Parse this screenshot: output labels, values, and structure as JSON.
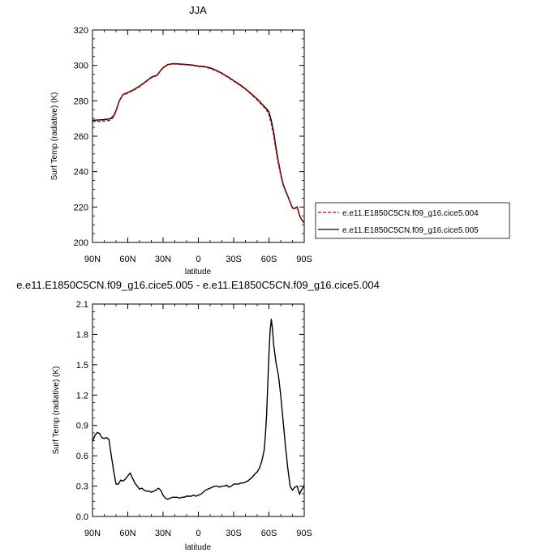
{
  "chart_data": [
    {
      "type": "line",
      "title": "JJA",
      "xlabel": "latitude",
      "ylabel": "Surf Temp (radiative) (K)",
      "ylim": [
        200,
        320
      ],
      "yticks": [
        "200",
        "220",
        "240",
        "260",
        "280",
        "300",
        "320"
      ],
      "xlim": [
        90,
        -90
      ],
      "xticks": [
        "90N",
        "60N",
        "30N",
        "0",
        "30S",
        "60S",
        "90S"
      ],
      "legend_position": "right",
      "series": [
        {
          "name": "e.e11.E1850C5CN.f09_g16.cice5.004",
          "color": "#cc0000",
          "dash": true,
          "x": [
            90,
            85,
            80,
            75,
            72,
            70,
            67,
            64,
            60,
            55,
            50,
            45,
            40,
            35,
            32,
            30,
            26,
            22,
            20,
            15,
            10,
            5,
            0,
            -5,
            -10,
            -15,
            -20,
            -25,
            -30,
            -35,
            -40,
            -45,
            -50,
            -55,
            -58,
            -60,
            -62,
            -64,
            -66,
            -68,
            -70,
            -72,
            -74,
            -76,
            -78,
            -80,
            -82,
            -84,
            -86,
            -88,
            -90
          ],
          "y": [
            268.3,
            268.4,
            268.6,
            269,
            271,
            274,
            280,
            283.3,
            284.3,
            286,
            288,
            290.5,
            293,
            294.3,
            297,
            298.5,
            300.3,
            300.7,
            300.8,
            300.5,
            300.3,
            300,
            299.4,
            299.1,
            298.3,
            297,
            295.3,
            293.3,
            291.1,
            288.9,
            286.5,
            283.6,
            280.5,
            277,
            274.7,
            272.2,
            267,
            260.5,
            252,
            244.5,
            238,
            232.5,
            229,
            226,
            222.5,
            219.3,
            219,
            219.7,
            215,
            212.5,
            211
          ]
        },
        {
          "name": "e.e11.E1850C5CN.f09_g16.cice5.005",
          "color": "#000000",
          "dash": false,
          "x": [
            90,
            85,
            80,
            75,
            72,
            70,
            67,
            64,
            60,
            55,
            50,
            45,
            40,
            35,
            32,
            30,
            26,
            22,
            20,
            15,
            10,
            5,
            0,
            -5,
            -10,
            -15,
            -20,
            -25,
            -30,
            -35,
            -40,
            -45,
            -50,
            -55,
            -58,
            -60,
            -62,
            -64,
            -66,
            -68,
            -70,
            -72,
            -74,
            -76,
            -78,
            -80,
            -82,
            -84,
            -86,
            -88,
            -90
          ],
          "y": [
            269.0,
            269.2,
            269.4,
            269.8,
            271.6,
            274.4,
            280.3,
            283.6,
            284.7,
            286.3,
            288.3,
            290.8,
            293.3,
            294.6,
            297.3,
            298.7,
            300.5,
            300.9,
            301,
            300.7,
            300.5,
            300.2,
            299.6,
            299.4,
            298.6,
            297.3,
            295.6,
            293.6,
            291.4,
            289.2,
            286.8,
            284,
            281,
            277.5,
            275.5,
            273.8,
            268.9,
            262.5,
            253.6,
            245.8,
            239,
            233,
            229.5,
            226.2,
            222.8,
            219.5,
            219.2,
            220.1,
            215.3,
            212.7,
            211.2
          ]
        }
      ]
    },
    {
      "type": "line",
      "title": "e.e11.E1850C5CN.f09_g16.cice5.005 - e.e11.E1850C5CN.f09_g16.cice5.004",
      "xlabel": "latitude",
      "ylabel": "Surf Temp (radiative) (K)",
      "ylim": [
        0.0,
        2.1
      ],
      "yticks": [
        "0.0",
        "0.3",
        "0.6",
        "0.9",
        "1.2",
        "1.5",
        "1.8",
        "2.1"
      ],
      "xlim": [
        90,
        -90
      ],
      "xticks": [
        "90N",
        "60N",
        "30N",
        "0",
        "30S",
        "60S",
        "90S"
      ],
      "series": [
        {
          "color": "#000000",
          "x": [
            90,
            88,
            86,
            84,
            82,
            80,
            78,
            76,
            74,
            72,
            70,
            68,
            66,
            64,
            62,
            60,
            58,
            56,
            54,
            52,
            50,
            48,
            46,
            44,
            42,
            40,
            38,
            36,
            34,
            32,
            30,
            28,
            26,
            24,
            22,
            20,
            18,
            16,
            14,
            12,
            10,
            8,
            6,
            4,
            2,
            0,
            -2,
            -4,
            -6,
            -8,
            -10,
            -12,
            -14,
            -16,
            -18,
            -20,
            -22,
            -24,
            -26,
            -28,
            -30,
            -32,
            -34,
            -36,
            -38,
            -40,
            -42,
            -44,
            -46,
            -48,
            -50,
            -52,
            -54,
            -56,
            -57,
            -58,
            -59,
            -60,
            -61,
            -62,
            -63,
            -64,
            -66,
            -68,
            -70,
            -72,
            -74,
            -76,
            -78,
            -80,
            -82,
            -84,
            -86,
            -88,
            -90
          ],
          "y": [
            0.74,
            0.8,
            0.83,
            0.82,
            0.78,
            0.77,
            0.78,
            0.76,
            0.6,
            0.45,
            0.32,
            0.32,
            0.36,
            0.35,
            0.37,
            0.4,
            0.43,
            0.38,
            0.33,
            0.3,
            0.27,
            0.28,
            0.26,
            0.25,
            0.25,
            0.24,
            0.25,
            0.26,
            0.28,
            0.26,
            0.21,
            0.18,
            0.17,
            0.18,
            0.19,
            0.19,
            0.19,
            0.18,
            0.19,
            0.19,
            0.2,
            0.2,
            0.2,
            0.21,
            0.2,
            0.21,
            0.22,
            0.24,
            0.26,
            0.27,
            0.28,
            0.29,
            0.3,
            0.3,
            0.29,
            0.3,
            0.3,
            0.31,
            0.29,
            0.3,
            0.32,
            0.32,
            0.32,
            0.33,
            0.33,
            0.34,
            0.35,
            0.37,
            0.39,
            0.42,
            0.44,
            0.48,
            0.55,
            0.66,
            0.8,
            1.0,
            1.3,
            1.6,
            1.84,
            1.95,
            1.85,
            1.7,
            1.52,
            1.4,
            1.2,
            0.95,
            0.7,
            0.48,
            0.3,
            0.26,
            0.29,
            0.3,
            0.22,
            0.27,
            0.3
          ]
        }
      ]
    }
  ]
}
